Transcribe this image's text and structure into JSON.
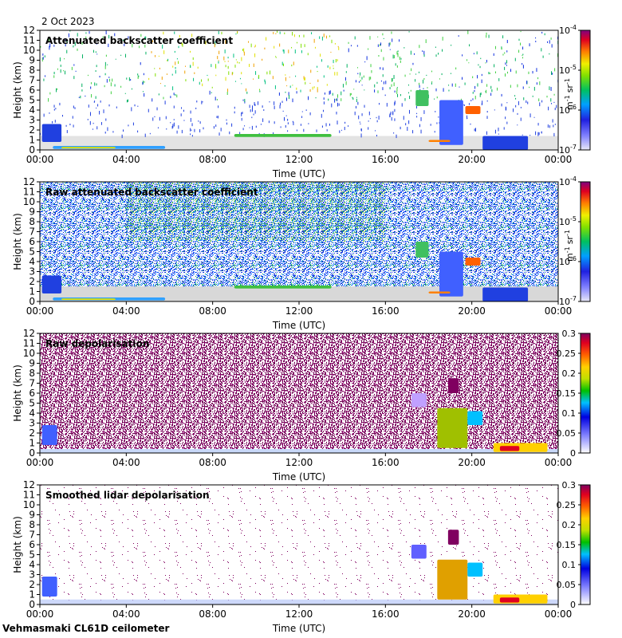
{
  "header": {
    "date": "2 Oct 2023"
  },
  "footer": {
    "instrument": "Vehmasmaki CL61D ceilometer"
  },
  "chart_data": [
    {
      "type": "heatmap",
      "title": "Attenuated backscatter coefficient",
      "xlabel": "Time (UTC)",
      "ylabel": "Height (km)",
      "x_ticks": [
        "00:00",
        "04:00",
        "08:00",
        "12:00",
        "16:00",
        "20:00",
        "00:00"
      ],
      "y_ticks": [
        "0",
        "1",
        "2",
        "3",
        "4",
        "5",
        "6",
        "7",
        "8",
        "9",
        "10",
        "11",
        "12"
      ],
      "xlim_hours": [
        0,
        24
      ],
      "ylim_km": [
        0,
        12
      ],
      "colorbar": {
        "scale": "log",
        "range": [
          1e-07,
          0.0001
        ],
        "ticks": [
          "10",
          "10",
          "10",
          "10"
        ],
        "tick_exponents": [
          "-4",
          "-5",
          "-6",
          "-7"
        ],
        "unit_m": "m",
        "unit_m_exp": "-1",
        "unit_sr": "sr",
        "unit_sr_exp": "-1"
      },
      "features": [
        {
          "name": "boundary layer aerosol",
          "time_h": [
            0,
            24
          ],
          "height_km": [
            0,
            1.2
          ]
        },
        {
          "name": "low cloud",
          "time_h": [
            0.5,
            5.8
          ],
          "height_km": [
            0.1,
            0.5
          ]
        },
        {
          "name": "mid cloud layer",
          "time_h": [
            17.5,
            18.0
          ],
          "height_km": [
            4.5,
            6.0
          ]
        },
        {
          "name": "cloud",
          "time_h": [
            19.8,
            20.4
          ],
          "height_km": [
            3.7,
            4.3
          ]
        },
        {
          "name": "low cloud",
          "time_h": [
            20.7,
            22.5
          ],
          "height_km": [
            0,
            1.5
          ]
        }
      ]
    },
    {
      "type": "heatmap",
      "title": "Raw attenuated backscatter coefficient",
      "xlabel": "Time (UTC)",
      "ylabel": "Height (km)",
      "x_ticks": [
        "00:00",
        "04:00",
        "08:00",
        "12:00",
        "16:00",
        "20:00",
        "00:00"
      ],
      "y_ticks": [
        "0",
        "1",
        "2",
        "3",
        "4",
        "5",
        "6",
        "7",
        "8",
        "9",
        "10",
        "11",
        "12"
      ],
      "xlim_hours": [
        0,
        24
      ],
      "ylim_km": [
        0,
        12
      ],
      "colorbar": {
        "scale": "log",
        "range": [
          1e-07,
          0.0001
        ],
        "ticks": [
          "10",
          "10",
          "10",
          "10"
        ],
        "tick_exponents": [
          "-4",
          "-5",
          "-6",
          "-7"
        ],
        "unit_m": "m",
        "unit_m_exp": "-1",
        "unit_sr": "sr",
        "unit_sr_exp": "-1"
      }
    },
    {
      "type": "heatmap",
      "title": "Raw depolarisation",
      "xlabel": "Time (UTC)",
      "ylabel": "Height (km)",
      "x_ticks": [
        "00:00",
        "04:00",
        "08:00",
        "12:00",
        "16:00",
        "20:00",
        "00:00"
      ],
      "y_ticks": [
        "0",
        "1",
        "2",
        "3",
        "4",
        "5",
        "6",
        "7",
        "8",
        "9",
        "10",
        "11",
        "12"
      ],
      "xlim_hours": [
        0,
        24
      ],
      "ylim_km": [
        0,
        12
      ],
      "colorbar": {
        "scale": "linear",
        "range": [
          0,
          0.3
        ],
        "ticks": [
          "0.3",
          "0.25",
          "0.2",
          "0.15",
          "0.1",
          "0.05",
          "0"
        ]
      }
    },
    {
      "type": "heatmap",
      "title": "Smoothed lidar depolarisation",
      "xlabel": "Time (UTC)",
      "ylabel": "Height (km)",
      "x_ticks": [
        "00:00",
        "04:00",
        "08:00",
        "12:00",
        "16:00",
        "20:00",
        "00:00"
      ],
      "y_ticks": [
        "0",
        "1",
        "2",
        "3",
        "4",
        "5",
        "6",
        "7",
        "8",
        "9",
        "10",
        "11",
        "12"
      ],
      "xlim_hours": [
        0,
        24
      ],
      "ylim_km": [
        0,
        12
      ],
      "colorbar": {
        "scale": "linear",
        "range": [
          0,
          0.3
        ],
        "ticks": [
          "0.3",
          "0.25",
          "0.2",
          "0.15",
          "0.1",
          "0.05",
          "0"
        ]
      }
    }
  ]
}
